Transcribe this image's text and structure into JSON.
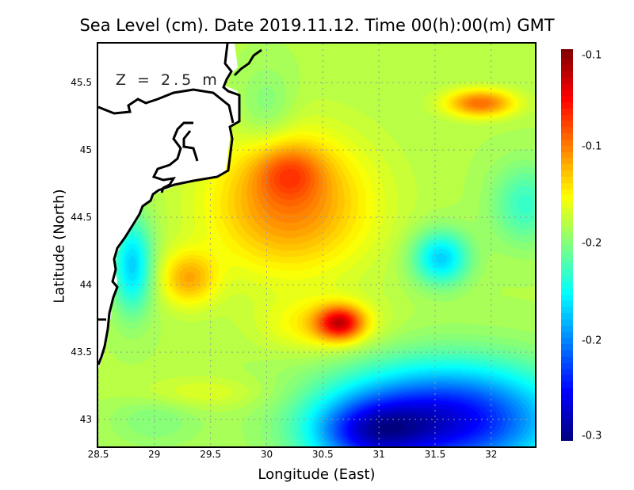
{
  "title": "Sea Level (cm). Date 2019.11.12. Time 00(h):00(m) GMT",
  "depth_label": "Z = 2.5 m",
  "chart_data": {
    "type": "heatmap",
    "title": "Sea Level (cm). Date 2019.11.12. Time 00(h):00(m) GMT",
    "xlabel": "Longitude (East)",
    "ylabel": "Latitude (North)",
    "xlim": [
      28.5,
      32.39
    ],
    "ylim": [
      42.8,
      45.79
    ],
    "x_ticks": [
      "28.5",
      "29",
      "29.5",
      "30",
      "30.5",
      "31",
      "31.5",
      "32"
    ],
    "x_tick_values": [
      28.5,
      29,
      29.5,
      30,
      30.5,
      31,
      31.5,
      32
    ],
    "y_ticks": [
      "45.5",
      "45",
      "44.5",
      "44",
      "43.5",
      "43"
    ],
    "y_tick_values": [
      45.5,
      45,
      44.5,
      44,
      43.5,
      43
    ],
    "grid": true,
    "colorbar": {
      "labels": [
        "-0.1",
        "-0.1",
        "-0.2",
        "-0.2",
        "-0.3"
      ],
      "range": [
        -0.3,
        -0.1
      ],
      "colormap": "jet"
    },
    "features": [
      {
        "name": "maximum",
        "lon": 30.65,
        "lat": 43.72,
        "level": "high (dark red)"
      },
      {
        "name": "high",
        "lon": 29.3,
        "lat": 44.05,
        "level": "red"
      },
      {
        "name": "high",
        "lon": 30.2,
        "lat": 44.85,
        "level": "red"
      },
      {
        "name": "low",
        "lon": 31.55,
        "lat": 44.2,
        "level": "cyan"
      },
      {
        "name": "minimum region",
        "lon": 31.6,
        "lat": 43.0,
        "level": "dark blue"
      }
    ]
  }
}
